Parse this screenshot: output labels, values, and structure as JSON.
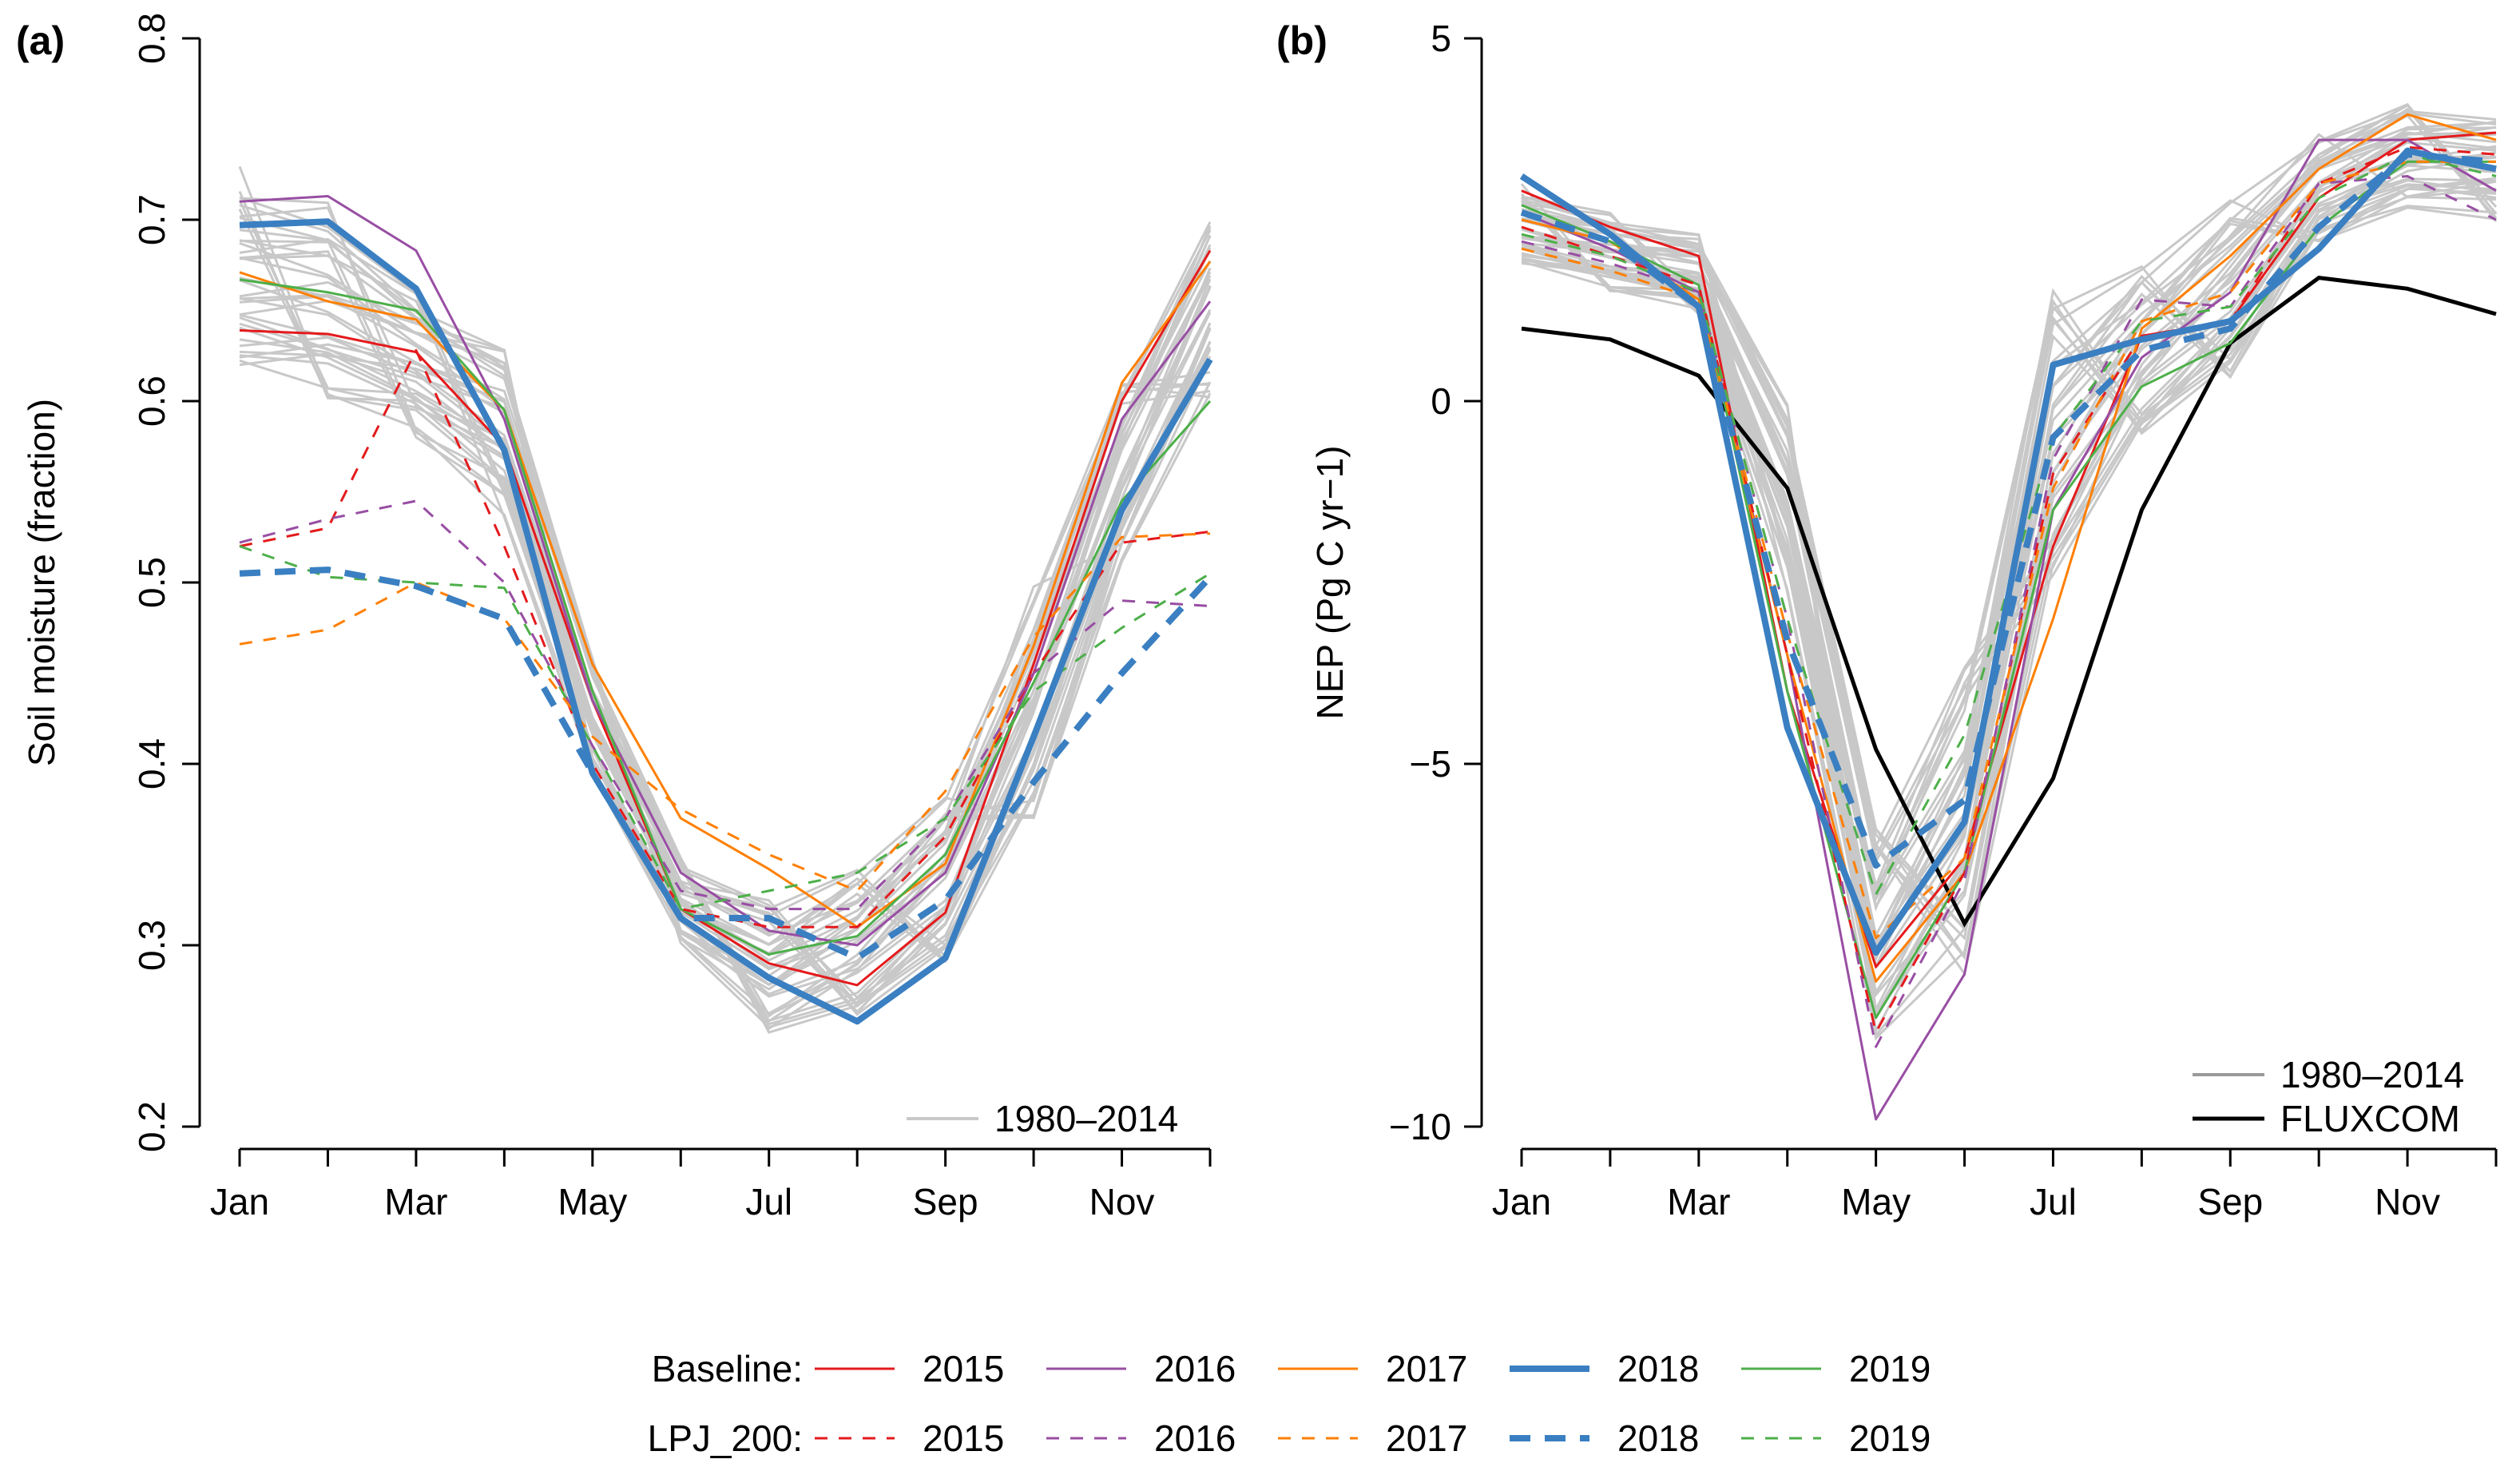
{
  "chart_data": [
    {
      "panel": "(a)",
      "type": "line",
      "ylabel": "Soil moisture (fraction)",
      "xlabel": "",
      "x": [
        1,
        2,
        3,
        4,
        5,
        6,
        7,
        8,
        9,
        10,
        11,
        12
      ],
      "xticks": [
        1,
        2,
        3,
        4,
        5,
        6,
        7,
        8,
        9,
        10,
        11,
        12
      ],
      "xticklabels": [
        "Jan",
        "",
        "Mar",
        "",
        "May",
        "",
        "Jul",
        "",
        "Sep",
        "",
        "Nov",
        ""
      ],
      "xlim": [
        1,
        12
      ],
      "ylim": [
        0.2,
        0.8
      ],
      "yticks": [
        0.2,
        0.3,
        0.4,
        0.5,
        0.6,
        0.7,
        0.8
      ],
      "yticklabels": [
        "0.2",
        "0.3",
        "0.4",
        "0.5",
        "0.6",
        "0.7",
        "0.8"
      ],
      "legend": {
        "placement": "bottom-right",
        "entries": [
          "1980–2014"
        ]
      },
      "background_range": {
        "label": "1980–2014",
        "color": "#c8c8c8",
        "count": 35,
        "low": [
          0.62,
          0.6,
          0.58,
          0.53,
          0.39,
          0.3,
          0.25,
          0.26,
          0.29,
          0.37,
          0.5,
          0.59
        ],
        "high": [
          0.73,
          0.71,
          0.66,
          0.63,
          0.46,
          0.35,
          0.33,
          0.35,
          0.39,
          0.5,
          0.61,
          0.7
        ]
      },
      "series": [
        {
          "year": "2015",
          "group": "Baseline",
          "color": "#e41a1c",
          "dash": "solid",
          "width": 3,
          "values": [
            0.639,
            0.637,
            0.627,
            0.575,
            0.435,
            0.32,
            0.29,
            0.278,
            0.318,
            0.455,
            0.6,
            0.683
          ]
        },
        {
          "year": "2016",
          "group": "Baseline",
          "color": "#984ea3",
          "dash": "solid",
          "width": 3,
          "values": [
            0.71,
            0.713,
            0.683,
            0.59,
            0.435,
            0.34,
            0.308,
            0.3,
            0.34,
            0.45,
            0.59,
            0.655
          ]
        },
        {
          "year": "2017",
          "group": "Baseline",
          "color": "#ff7f00",
          "dash": "solid",
          "width": 3,
          "values": [
            0.671,
            0.655,
            0.645,
            0.595,
            0.455,
            0.37,
            0.342,
            0.31,
            0.345,
            0.465,
            0.61,
            0.677
          ]
        },
        {
          "year": "2018",
          "group": "Baseline",
          "color": "#3a7fc1",
          "dash": "solid",
          "width": 8,
          "values": [
            0.697,
            0.699,
            0.662,
            0.573,
            0.395,
            0.315,
            0.282,
            0.258,
            0.293,
            0.415,
            0.54,
            0.623
          ]
        },
        {
          "year": "2019",
          "group": "Baseline",
          "color": "#4daf4a",
          "dash": "solid",
          "width": 3,
          "values": [
            0.667,
            0.66,
            0.65,
            0.595,
            0.44,
            0.32,
            0.295,
            0.305,
            0.35,
            0.445,
            0.545,
            0.6
          ]
        },
        {
          "year": "2015",
          "group": "LPJ_200",
          "color": "#e41a1c",
          "dash": "dashed",
          "width": 3,
          "values": [
            0.52,
            0.53,
            0.628,
            0.52,
            0.4,
            0.32,
            0.31,
            0.31,
            0.36,
            0.45,
            0.522,
            0.528
          ]
        },
        {
          "year": "2016",
          "group": "LPJ_200",
          "color": "#984ea3",
          "dash": "dashed",
          "width": 3,
          "values": [
            0.522,
            0.535,
            0.545,
            0.5,
            0.41,
            0.33,
            0.32,
            0.32,
            0.37,
            0.45,
            0.49,
            0.487
          ]
        },
        {
          "year": "2017",
          "group": "LPJ_200",
          "color": "#ff7f00",
          "dash": "dashed",
          "width": 3,
          "values": [
            0.466,
            0.474,
            0.5,
            0.48,
            0.415,
            0.375,
            0.35,
            0.33,
            0.385,
            0.47,
            0.525,
            0.527
          ]
        },
        {
          "year": "2018",
          "group": "LPJ_200",
          "color": "#3a7fc1",
          "dash": "dashed",
          "width": 8,
          "values": [
            0.505,
            0.507,
            0.498,
            0.48,
            0.395,
            0.315,
            0.315,
            0.293,
            0.325,
            0.39,
            0.45,
            0.503
          ]
        },
        {
          "year": "2019",
          "group": "LPJ_200",
          "color": "#4daf4a",
          "dash": "dashed",
          "width": 3,
          "values": [
            0.52,
            0.503,
            0.5,
            0.497,
            0.41,
            0.32,
            0.33,
            0.34,
            0.37,
            0.44,
            0.475,
            0.505
          ]
        }
      ]
    },
    {
      "panel": "(b)",
      "type": "line",
      "ylabel": "NEP (Pg C yr−1)",
      "xlabel": "",
      "x": [
        1,
        2,
        3,
        4,
        5,
        6,
        7,
        8,
        9,
        10,
        11,
        12
      ],
      "xticks": [
        1,
        2,
        3,
        4,
        5,
        6,
        7,
        8,
        9,
        10,
        11,
        12
      ],
      "xticklabels": [
        "Jan",
        "",
        "Mar",
        "",
        "May",
        "",
        "Jul",
        "",
        "Sep",
        "",
        "Nov",
        ""
      ],
      "xlim": [
        1,
        12
      ],
      "ylim": [
        -10,
        5
      ],
      "yticks": [
        -10,
        -5,
        0,
        5
      ],
      "yticklabels": [
        "−10",
        "−5",
        "0",
        "5"
      ],
      "legend": {
        "placement": "bottom-right",
        "entries": [
          "1980–2014",
          "FLUXCOM"
        ]
      },
      "background_range": {
        "label": "1980–2014",
        "color": "#c8c8c8",
        "count": 35,
        "low": [
          1.9,
          1.5,
          1.2,
          -2.8,
          -9.0,
          -8.0,
          -2.5,
          -0.5,
          0.3,
          2.2,
          2.5,
          2.3
        ],
        "high": [
          3.0,
          2.6,
          2.3,
          0.0,
          -5.8,
          -3.5,
          1.8,
          2.1,
          3.0,
          3.7,
          4.1,
          3.9
        ]
      },
      "reference_series": {
        "name": "FLUXCOM",
        "color": "#000000",
        "width": 5,
        "values": [
          1.0,
          0.85,
          0.35,
          -1.2,
          -4.8,
          -7.2,
          -5.2,
          -1.5,
          0.8,
          1.7,
          1.55,
          1.2
        ]
      },
      "series": [
        {
          "year": "2015",
          "group": "Baseline",
          "color": "#e41a1c",
          "dash": "solid",
          "width": 3,
          "values": [
            2.9,
            2.4,
            2.0,
            -4.0,
            -7.8,
            -6.3,
            -2.0,
            0.9,
            1.1,
            2.8,
            3.6,
            3.7
          ]
        },
        {
          "year": "2016",
          "group": "Baseline",
          "color": "#984ea3",
          "dash": "solid",
          "width": 3,
          "values": [
            2.6,
            2.1,
            1.5,
            -3.5,
            -9.9,
            -7.9,
            -1.5,
            0.6,
            1.5,
            3.6,
            3.6,
            2.9
          ]
        },
        {
          "year": "2017",
          "group": "Baseline",
          "color": "#ff7f00",
          "dash": "solid",
          "width": 3,
          "values": [
            2.5,
            2.2,
            1.4,
            -3.5,
            -8.0,
            -6.5,
            -3.0,
            1.0,
            2.0,
            3.2,
            3.95,
            3.6
          ]
        },
        {
          "year": "2018",
          "group": "Baseline",
          "color": "#3a7fc1",
          "dash": "solid",
          "width": 8,
          "values": [
            3.1,
            2.3,
            1.3,
            -4.5,
            -7.6,
            -5.8,
            0.5,
            0.85,
            1.1,
            2.1,
            3.45,
            3.2
          ]
        },
        {
          "year": "2019",
          "group": "Baseline",
          "color": "#4daf4a",
          "dash": "solid",
          "width": 3,
          "values": [
            2.7,
            2.2,
            1.6,
            -4.0,
            -8.5,
            -6.5,
            -1.5,
            0.2,
            0.8,
            2.4,
            3.3,
            3.3
          ]
        },
        {
          "year": "2015",
          "group": "LPJ_200",
          "color": "#e41a1c",
          "dash": "dashed",
          "width": 3,
          "values": [
            2.4,
            2.0,
            1.6,
            -3.5,
            -8.7,
            -6.5,
            -1.0,
            0.9,
            1.1,
            3.0,
            3.5,
            3.4
          ]
        },
        {
          "year": "2016",
          "group": "LPJ_200",
          "color": "#984ea3",
          "dash": "dashed",
          "width": 3,
          "values": [
            2.2,
            1.9,
            1.5,
            -3.0,
            -8.9,
            -6.6,
            -0.8,
            1.4,
            1.3,
            3.0,
            3.1,
            2.5
          ]
        },
        {
          "year": "2017",
          "group": "LPJ_200",
          "color": "#ff7f00",
          "dash": "dashed",
          "width": 3,
          "values": [
            2.1,
            1.8,
            1.4,
            -3.2,
            -7.4,
            -6.3,
            -1.2,
            1.1,
            1.5,
            3.0,
            3.3,
            3.3
          ]
        },
        {
          "year": "2018",
          "group": "LPJ_200",
          "color": "#3a7fc1",
          "dash": "dashed",
          "width": 8,
          "values": [
            2.6,
            2.2,
            1.3,
            -3.3,
            -6.4,
            -5.5,
            -0.5,
            0.7,
            1.0,
            2.4,
            3.4,
            3.3
          ]
        },
        {
          "year": "2019",
          "group": "LPJ_200",
          "color": "#4daf4a",
          "dash": "dashed",
          "width": 3,
          "values": [
            2.3,
            2.0,
            1.5,
            -3.0,
            -6.8,
            -4.6,
            -0.5,
            1.1,
            1.3,
            2.8,
            3.4,
            3.1
          ]
        }
      ]
    }
  ],
  "legend_bottom": {
    "rows": [
      {
        "label": "Baseline:",
        "dash": "solid",
        "items": [
          {
            "year": "2015",
            "color": "#e41a1c",
            "width": 3
          },
          {
            "year": "2016",
            "color": "#984ea3",
            "width": 3
          },
          {
            "year": "2017",
            "color": "#ff7f00",
            "width": 3
          },
          {
            "year": "2018",
            "color": "#3a7fc1",
            "width": 8
          },
          {
            "year": "2019",
            "color": "#4daf4a",
            "width": 3
          }
        ]
      },
      {
        "label": "LPJ_200:",
        "dash": "dashed",
        "items": [
          {
            "year": "2015",
            "color": "#e41a1c",
            "width": 3
          },
          {
            "year": "2016",
            "color": "#984ea3",
            "width": 3
          },
          {
            "year": "2017",
            "color": "#ff7f00",
            "width": 3
          },
          {
            "year": "2018",
            "color": "#3a7fc1",
            "width": 8
          },
          {
            "year": "2019",
            "color": "#4daf4a",
            "width": 3
          }
        ]
      }
    ]
  }
}
